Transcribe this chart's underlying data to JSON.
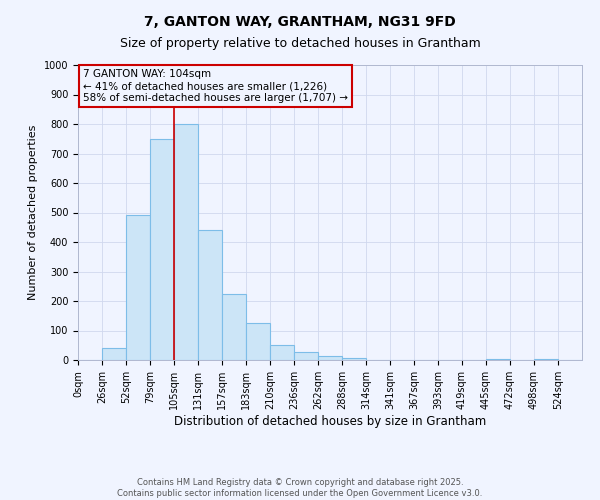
{
  "title": "7, GANTON WAY, GRANTHAM, NG31 9FD",
  "subtitle": "Size of property relative to detached houses in Grantham",
  "xlabel": "Distribution of detached houses by size in Grantham",
  "ylabel": "Number of detached properties",
  "bin_labels": [
    "0sqm",
    "26sqm",
    "52sqm",
    "79sqm",
    "105sqm",
    "131sqm",
    "157sqm",
    "183sqm",
    "210sqm",
    "236sqm",
    "262sqm",
    "288sqm",
    "314sqm",
    "341sqm",
    "367sqm",
    "393sqm",
    "419sqm",
    "445sqm",
    "472sqm",
    "498sqm",
    "524sqm"
  ],
  "bar_heights": [
    0,
    40,
    490,
    750,
    800,
    440,
    225,
    125,
    50,
    28,
    15,
    8,
    0,
    0,
    0,
    0,
    0,
    3,
    0,
    2,
    0
  ],
  "bar_color": "#cce5f7",
  "bar_edgecolor": "#7dbde8",
  "bar_linewidth": 0.8,
  "vline_x_index": 4,
  "vline_color": "#cc0000",
  "vline_linewidth": 1.2,
  "ylim": [
    0,
    1000
  ],
  "annotation_title": "7 GANTON WAY: 104sqm",
  "annotation_line1": "← 41% of detached houses are smaller (1,226)",
  "annotation_line2": "58% of semi-detached houses are larger (1,707) →",
  "annotation_box_color": "#cc0000",
  "footer1": "Contains HM Land Registry data © Crown copyright and database right 2025.",
  "footer2": "Contains public sector information licensed under the Open Government Licence v3.0.",
  "background_color": "#f0f4ff",
  "grid_color": "#d0d8ee",
  "title_fontsize": 10,
  "subtitle_fontsize": 9,
  "tick_fontsize": 7,
  "ylabel_fontsize": 8,
  "xlabel_fontsize": 8.5,
  "annotation_fontsize": 7.5,
  "footer_fontsize": 6
}
